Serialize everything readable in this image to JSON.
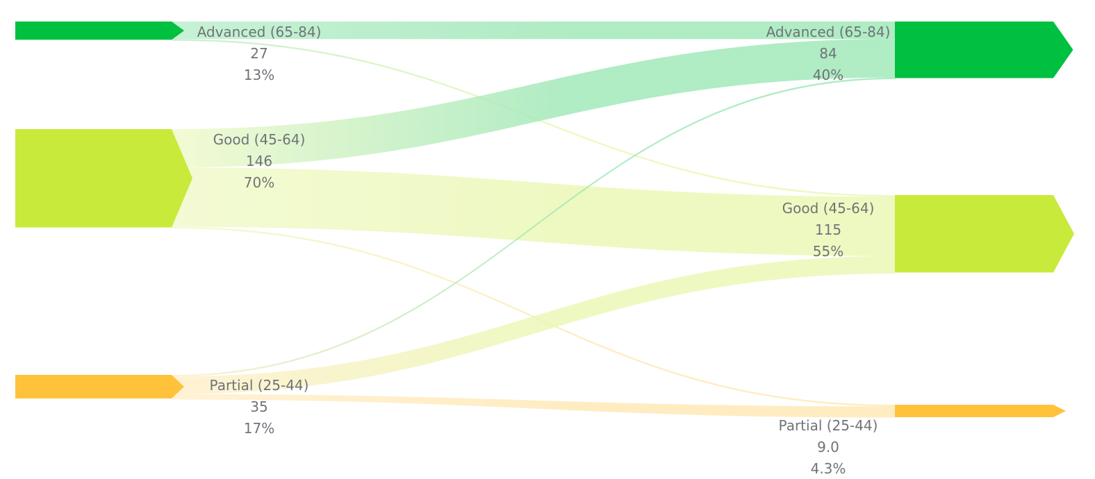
{
  "chart_data": {
    "type": "sankey",
    "title": "",
    "columns": [
      {
        "name": "",
        "nodes": [
          {
            "id": "src-advanced",
            "label": "Advanced (65-84)",
            "value": 27,
            "value_text": "27",
            "percent_text": "13%",
            "color": "#00c040"
          },
          {
            "id": "src-good",
            "label": "Good (45-64)",
            "value": 146,
            "value_text": "146",
            "percent_text": "70%",
            "color": "#c8ea3a"
          },
          {
            "id": "src-partial",
            "label": "Partial (25-44)",
            "value": 35,
            "value_text": "35",
            "percent_text": "17%",
            "color": "#ffc23a"
          }
        ]
      },
      {
        "name": "",
        "nodes": [
          {
            "id": "dst-advanced",
            "label": "Advanced (65-84)",
            "value": 84,
            "value_text": "84",
            "percent_text": "40%",
            "color": "#00c040"
          },
          {
            "id": "dst-good",
            "label": "Good (45-64)",
            "value": 115,
            "value_text": "115",
            "percent_text": "55%",
            "color": "#c8ea3a"
          },
          {
            "id": "dst-partial",
            "label": "Partial (25-44)",
            "value": 9.0,
            "value_text": "9.0",
            "percent_text": "4.3%",
            "color": "#ffc23a"
          }
        ]
      }
    ],
    "links": [
      {
        "source": "src-advanced",
        "target": "dst-advanced",
        "value": 26
      },
      {
        "source": "src-advanced",
        "target": "dst-good",
        "value": 1
      },
      {
        "source": "src-good",
        "target": "dst-advanced",
        "value": 57
      },
      {
        "source": "src-good",
        "target": "dst-good",
        "value": 88
      },
      {
        "source": "src-good",
        "target": "dst-partial",
        "value": 1
      },
      {
        "source": "src-partial",
        "target": "dst-advanced",
        "value": 1
      },
      {
        "source": "src-partial",
        "target": "dst-good",
        "value": 26
      },
      {
        "source": "src-partial",
        "target": "dst-partial",
        "value": 8
      }
    ],
    "legend": "none",
    "grid": false
  }
}
